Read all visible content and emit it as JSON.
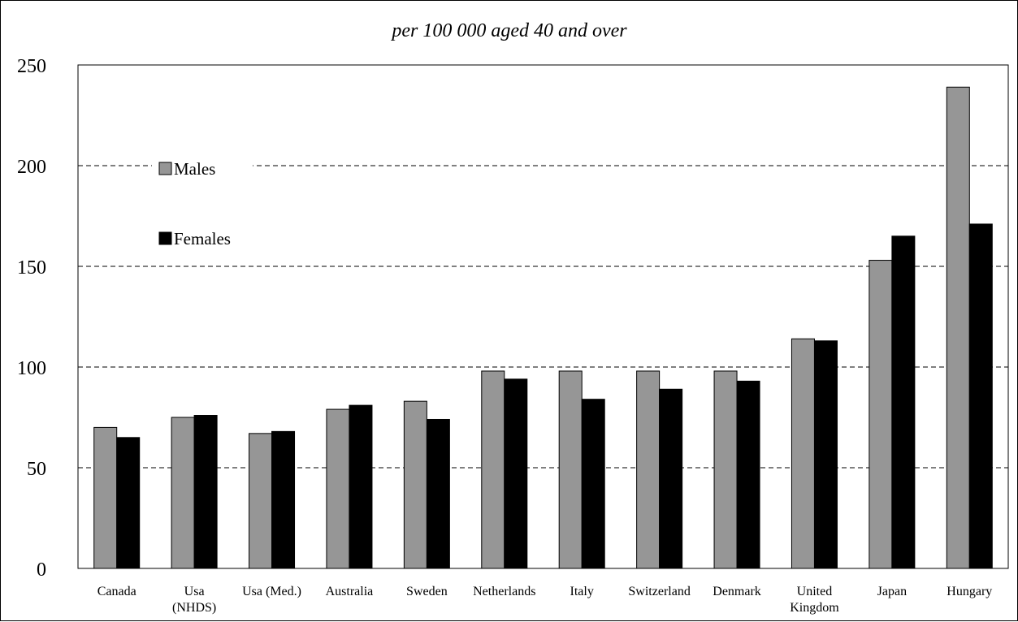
{
  "chart_data": {
    "type": "bar",
    "title": "per 100 000 aged 40 and over",
    "xlabel": "",
    "ylabel": "",
    "ylim": [
      0,
      250
    ],
    "yticks": [
      0,
      50,
      100,
      150,
      200,
      250
    ],
    "grid": "dashed-horizontal",
    "legend_position": "upper-left",
    "categories": [
      [
        "Canada"
      ],
      [
        "Usa",
        "(NHDS)"
      ],
      [
        "Usa (Med.)"
      ],
      [
        "Australia"
      ],
      [
        "Sweden"
      ],
      [
        "Netherlands"
      ],
      [
        "Italy"
      ],
      [
        "Switzerland"
      ],
      [
        "Denmark"
      ],
      [
        "United",
        "Kingdom"
      ],
      [
        "Japan"
      ],
      [
        "Hungary"
      ]
    ],
    "series": [
      {
        "name": "Males",
        "color": "#969696",
        "values": [
          70,
          75,
          67,
          79,
          83,
          98,
          98,
          98,
          98,
          114,
          153,
          239
        ]
      },
      {
        "name": "Females",
        "color": "#000000",
        "values": [
          65,
          76,
          68,
          81,
          74,
          94,
          84,
          89,
          93,
          113,
          165,
          171
        ]
      }
    ]
  }
}
